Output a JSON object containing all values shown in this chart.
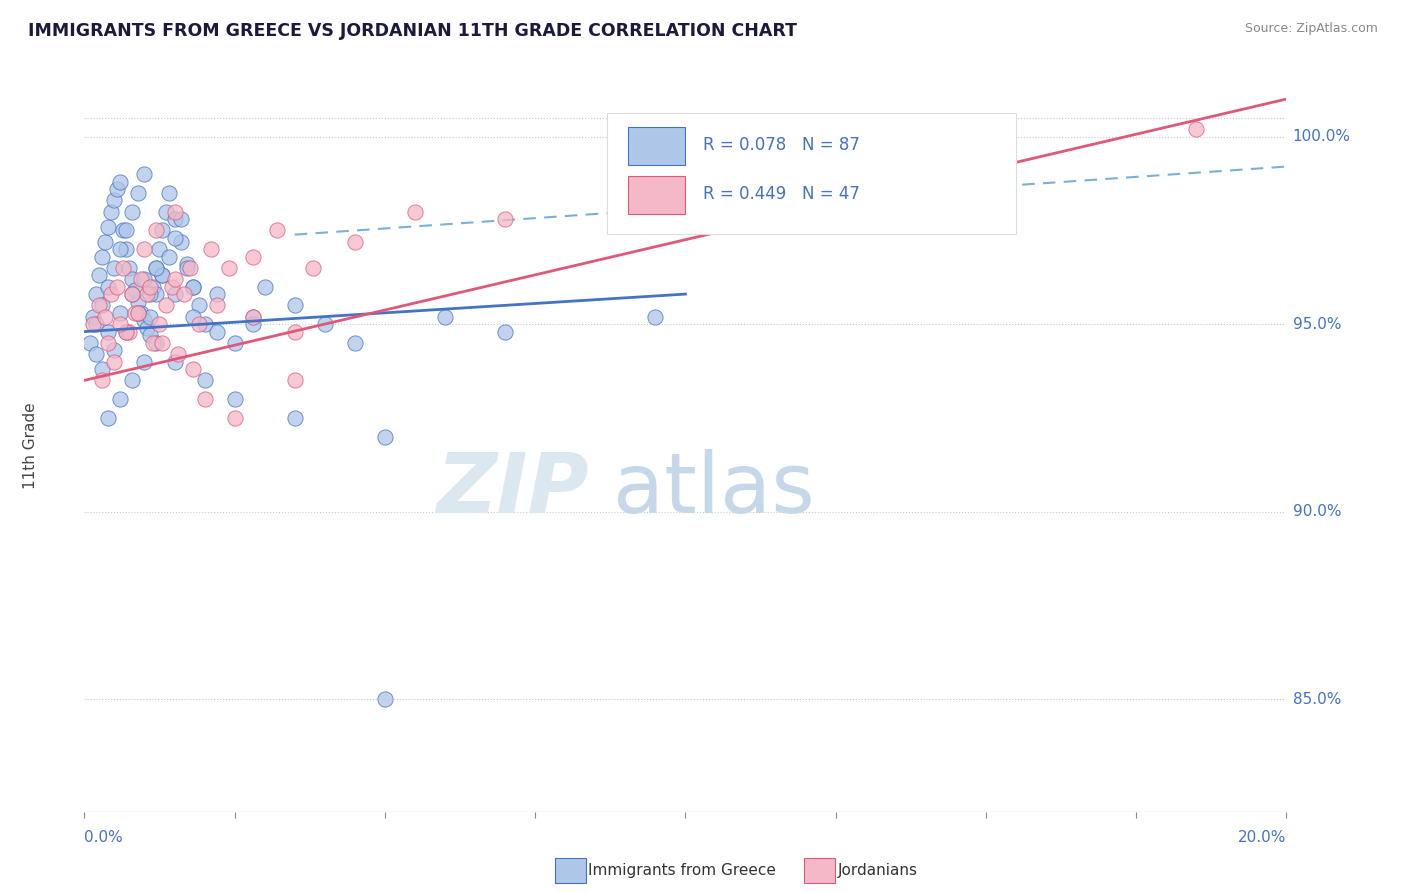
{
  "title": "IMMIGRANTS FROM GREECE VS JORDANIAN 11TH GRADE CORRELATION CHART",
  "source": "Source: ZipAtlas.com",
  "ylabel": "11th Grade",
  "R_blue": 0.078,
  "N_blue": 87,
  "R_pink": 0.449,
  "N_pink": 47,
  "color_blue": "#aec6e8",
  "color_pink": "#f4b8c8",
  "line_blue": "#4472c4",
  "line_pink": "#e05878",
  "line_dash": "#7ab0d4",
  "legend_label_blue": "Immigrants from Greece",
  "legend_label_pink": "Jordanians",
  "xlim": [
    0.0,
    20.0
  ],
  "ylim": [
    82.0,
    101.5
  ],
  "yticks": [
    85.0,
    90.0,
    95.0,
    100.0
  ],
  "ytick_labels": [
    "85.0%",
    "90.0%",
    "95.0%",
    "100.0%"
  ],
  "blue_trend": [
    0.0,
    20.0,
    94.8,
    96.8
  ],
  "pink_trend": [
    0.0,
    20.0,
    93.5,
    101.0
  ],
  "dash_trend": [
    0.0,
    20.0,
    97.0,
    99.2
  ],
  "blue_scatter_x": [
    0.15,
    0.2,
    0.25,
    0.3,
    0.35,
    0.4,
    0.45,
    0.5,
    0.55,
    0.6,
    0.65,
    0.7,
    0.75,
    0.8,
    0.85,
    0.9,
    0.95,
    1.0,
    1.05,
    1.1,
    1.15,
    1.2,
    1.25,
    1.3,
    1.35,
    1.4,
    1.5,
    1.6,
    1.7,
    1.8,
    0.1,
    0.2,
    0.3,
    0.4,
    0.5,
    0.6,
    0.7,
    0.8,
    0.9,
    1.0,
    1.1,
    1.2,
    1.3,
    1.4,
    1.5,
    1.6,
    1.7,
    1.8,
    1.9,
    2.0,
    2.2,
    2.5,
    2.8,
    3.0,
    3.5,
    4.0,
    4.5,
    5.0,
    6.0,
    7.0,
    0.3,
    0.5,
    0.7,
    0.9,
    1.1,
    1.3,
    1.5,
    1.8,
    2.2,
    2.8,
    0.4,
    0.6,
    0.8,
    1.0,
    1.2,
    1.5,
    2.0,
    2.5,
    3.5,
    5.0,
    0.2,
    0.4,
    0.6,
    0.8,
    1.0,
    1.2,
    9.5
  ],
  "blue_scatter_y": [
    95.2,
    95.8,
    96.3,
    96.8,
    97.2,
    97.6,
    98.0,
    98.3,
    98.6,
    98.8,
    97.5,
    97.0,
    96.5,
    96.2,
    95.9,
    95.6,
    95.3,
    95.1,
    94.9,
    94.7,
    96.0,
    96.5,
    97.0,
    97.5,
    98.0,
    98.5,
    97.8,
    97.2,
    96.6,
    96.0,
    94.5,
    95.0,
    95.5,
    96.0,
    96.5,
    97.0,
    97.5,
    98.0,
    98.5,
    99.0,
    95.2,
    95.8,
    96.3,
    96.8,
    97.3,
    97.8,
    96.5,
    96.0,
    95.5,
    95.0,
    94.8,
    94.5,
    95.2,
    96.0,
    95.5,
    95.0,
    94.5,
    85.0,
    95.2,
    94.8,
    93.8,
    94.3,
    94.8,
    95.3,
    95.8,
    96.3,
    95.8,
    95.2,
    95.8,
    95.0,
    92.5,
    93.0,
    93.5,
    94.0,
    94.5,
    94.0,
    93.5,
    93.0,
    92.5,
    92.0,
    94.2,
    94.8,
    95.3,
    95.8,
    96.2,
    96.5,
    95.2
  ],
  "pink_scatter_x": [
    0.15,
    0.25,
    0.35,
    0.45,
    0.55,
    0.65,
    0.75,
    0.85,
    0.95,
    1.05,
    1.15,
    1.25,
    1.35,
    1.45,
    1.55,
    1.65,
    1.75,
    1.9,
    2.1,
    2.4,
    2.8,
    3.2,
    3.8,
    4.5,
    5.5,
    0.3,
    0.5,
    0.7,
    0.9,
    1.1,
    1.3,
    1.5,
    1.8,
    2.2,
    2.8,
    3.5,
    0.4,
    0.6,
    0.8,
    1.0,
    1.2,
    1.5,
    2.0,
    2.5,
    3.5,
    7.0,
    18.5
  ],
  "pink_scatter_y": [
    95.0,
    95.5,
    95.2,
    95.8,
    96.0,
    96.5,
    94.8,
    95.3,
    96.2,
    95.8,
    94.5,
    95.0,
    95.5,
    96.0,
    94.2,
    95.8,
    96.5,
    95.0,
    97.0,
    96.5,
    96.8,
    97.5,
    96.5,
    97.2,
    98.0,
    93.5,
    94.0,
    94.8,
    95.3,
    96.0,
    94.5,
    96.2,
    93.8,
    95.5,
    95.2,
    94.8,
    94.5,
    95.0,
    95.8,
    97.0,
    97.5,
    98.0,
    93.0,
    92.5,
    93.5,
    97.8,
    100.2
  ]
}
